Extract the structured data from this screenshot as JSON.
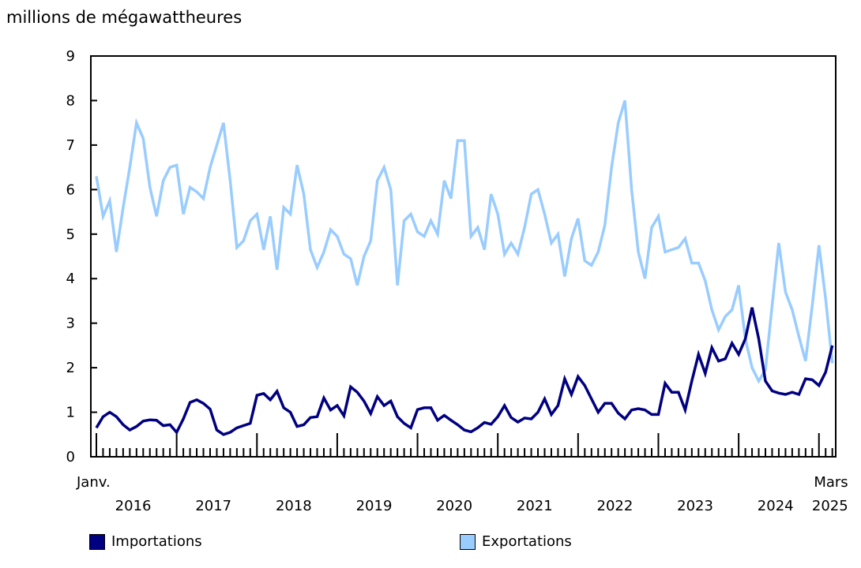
{
  "chart_data": {
    "type": "line",
    "ylabel": "millions de mégawattheures",
    "ylim": [
      0,
      9
    ],
    "yticks": [
      "0",
      "1",
      "2",
      "3",
      "4",
      "5",
      "6",
      "7",
      "8",
      "9"
    ],
    "x_start": "2016-01",
    "x_end": "2025-03",
    "x_first_label": "Janv.",
    "x_last_label": "Mars",
    "year_labels": [
      "2016",
      "2017",
      "2018",
      "2019",
      "2020",
      "2021",
      "2022",
      "2023",
      "2024",
      "2025"
    ],
    "grid": false,
    "legend_position": "bottom",
    "series": [
      {
        "name": "Importations",
        "color": "#000080",
        "values": [
          0.65,
          0.9,
          1.0,
          0.9,
          0.72,
          0.6,
          0.68,
          0.8,
          0.83,
          0.82,
          0.7,
          0.72,
          0.55,
          0.85,
          1.22,
          1.28,
          1.2,
          1.07,
          0.6,
          0.5,
          0.55,
          0.65,
          0.7,
          0.75,
          1.38,
          1.42,
          1.28,
          1.47,
          1.1,
          1.0,
          0.68,
          0.72,
          0.88,
          0.9,
          1.32,
          1.05,
          1.15,
          0.92,
          1.57,
          1.45,
          1.25,
          0.97,
          1.35,
          1.15,
          1.25,
          0.9,
          0.75,
          0.65,
          1.06,
          1.1,
          1.1,
          0.82,
          0.93,
          0.82,
          0.72,
          0.6,
          0.56,
          0.65,
          0.77,
          0.73,
          0.9,
          1.15,
          0.88,
          0.78,
          0.87,
          0.85,
          1.0,
          1.3,
          0.95,
          1.15,
          1.75,
          1.4,
          1.8,
          1.6,
          1.3,
          1.0,
          1.2,
          1.2,
          0.98,
          0.85,
          1.05,
          1.08,
          1.05,
          0.95,
          0.95,
          1.65,
          1.45,
          1.45,
          1.05,
          1.7,
          2.3,
          1.87,
          2.45,
          2.15,
          2.2,
          2.55,
          2.3,
          2.65,
          3.35,
          2.65,
          1.7,
          1.48,
          1.43,
          1.4,
          1.45,
          1.4,
          1.75,
          1.73,
          1.6,
          1.9,
          2.5
        ]
      },
      {
        "name": "Exportations",
        "color": "#99ccff",
        "values": [
          6.3,
          5.4,
          5.75,
          4.6,
          5.6,
          6.5,
          7.5,
          7.15,
          6.05,
          5.4,
          6.2,
          6.5,
          6.55,
          5.45,
          6.05,
          5.95,
          5.8,
          6.5,
          7.0,
          7.5,
          6.2,
          4.7,
          4.85,
          5.3,
          5.45,
          4.65,
          5.4,
          4.2,
          5.6,
          5.45,
          6.55,
          5.9,
          4.65,
          4.25,
          4.6,
          5.1,
          4.95,
          4.55,
          4.45,
          3.85,
          4.5,
          4.85,
          6.2,
          6.5,
          6.0,
          3.85,
          5.3,
          5.45,
          5.05,
          4.95,
          5.3,
          5.0,
          6.2,
          5.8,
          7.1,
          7.1,
          4.95,
          5.15,
          4.65,
          5.9,
          5.45,
          4.55,
          4.8,
          4.55,
          5.15,
          5.9,
          6.0,
          5.45,
          4.8,
          5.0,
          4.05,
          4.9,
          5.35,
          4.4,
          4.3,
          4.6,
          5.2,
          6.5,
          7.5,
          8.0,
          6.0,
          4.6,
          4.0,
          5.15,
          5.4,
          4.6,
          4.65,
          4.7,
          4.9,
          4.35,
          4.35,
          3.95,
          3.3,
          2.85,
          3.15,
          3.3,
          3.85,
          2.65,
          2.0,
          1.7,
          1.95,
          3.4,
          4.8,
          3.7,
          3.3,
          2.7,
          2.15,
          3.4,
          4.75,
          3.55,
          2.1
        ]
      }
    ]
  }
}
